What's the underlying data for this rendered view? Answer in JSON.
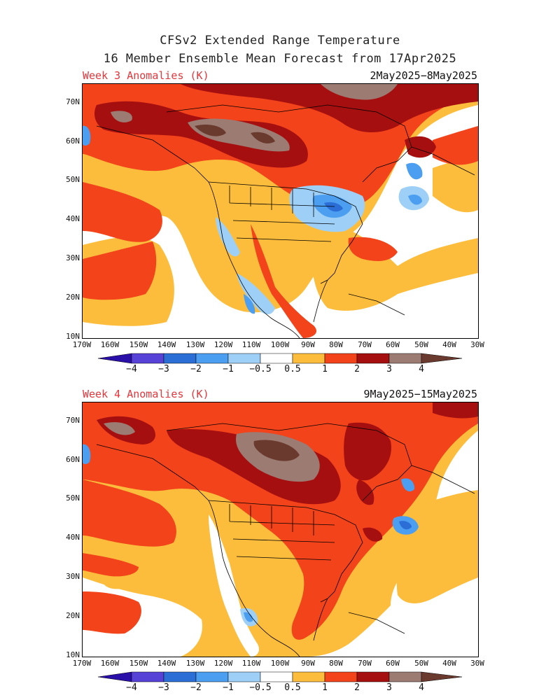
{
  "header": {
    "title_line1": "CFSv2 Extended Range Temperature",
    "title_line2": "16 Member Ensemble Mean Forecast from 17Apr2025"
  },
  "panels": [
    {
      "week_label": "Week 3 Anomalies (K)",
      "date_range": "2May2025−8May2025"
    },
    {
      "week_label": "Week 4 Anomalies (K)",
      "date_range": "9May2025−15May2025"
    }
  ],
  "lat_labels": [
    "70N",
    "60N",
    "50N",
    "40N",
    "30N",
    "20N",
    "10N"
  ],
  "lon_labels": [
    "170W",
    "160W",
    "150W",
    "140W",
    "130W",
    "120W",
    "110W",
    "100W",
    "90W",
    "80W",
    "70W",
    "60W",
    "50W",
    "40W",
    "30W"
  ],
  "colorbar": {
    "labels": [
      "−4",
      "−3",
      "−2",
      "−1",
      "−0.5",
      "0.5",
      "1",
      "2",
      "3",
      "4"
    ],
    "colors": [
      "#2a0fa8",
      "#5642d6",
      "#2b6fd6",
      "#4b9ef0",
      "#9ed0f7",
      "#ffffff",
      "#fdbd3c",
      "#f2431b",
      "#a60f0f",
      "#9c7b73",
      "#6b3a2e"
    ]
  },
  "colors": {
    "light_orange": "#fdbd3c",
    "red_orange": "#f2431b",
    "dark_red": "#a60f0f",
    "brown_gray": "#9c7b73",
    "dark_brown": "#6b3a2e",
    "light_blue": "#9ed0f7",
    "med_blue": "#4b9ef0",
    "blue": "#2b6fd6",
    "purple_blue": "#5642d6"
  }
}
